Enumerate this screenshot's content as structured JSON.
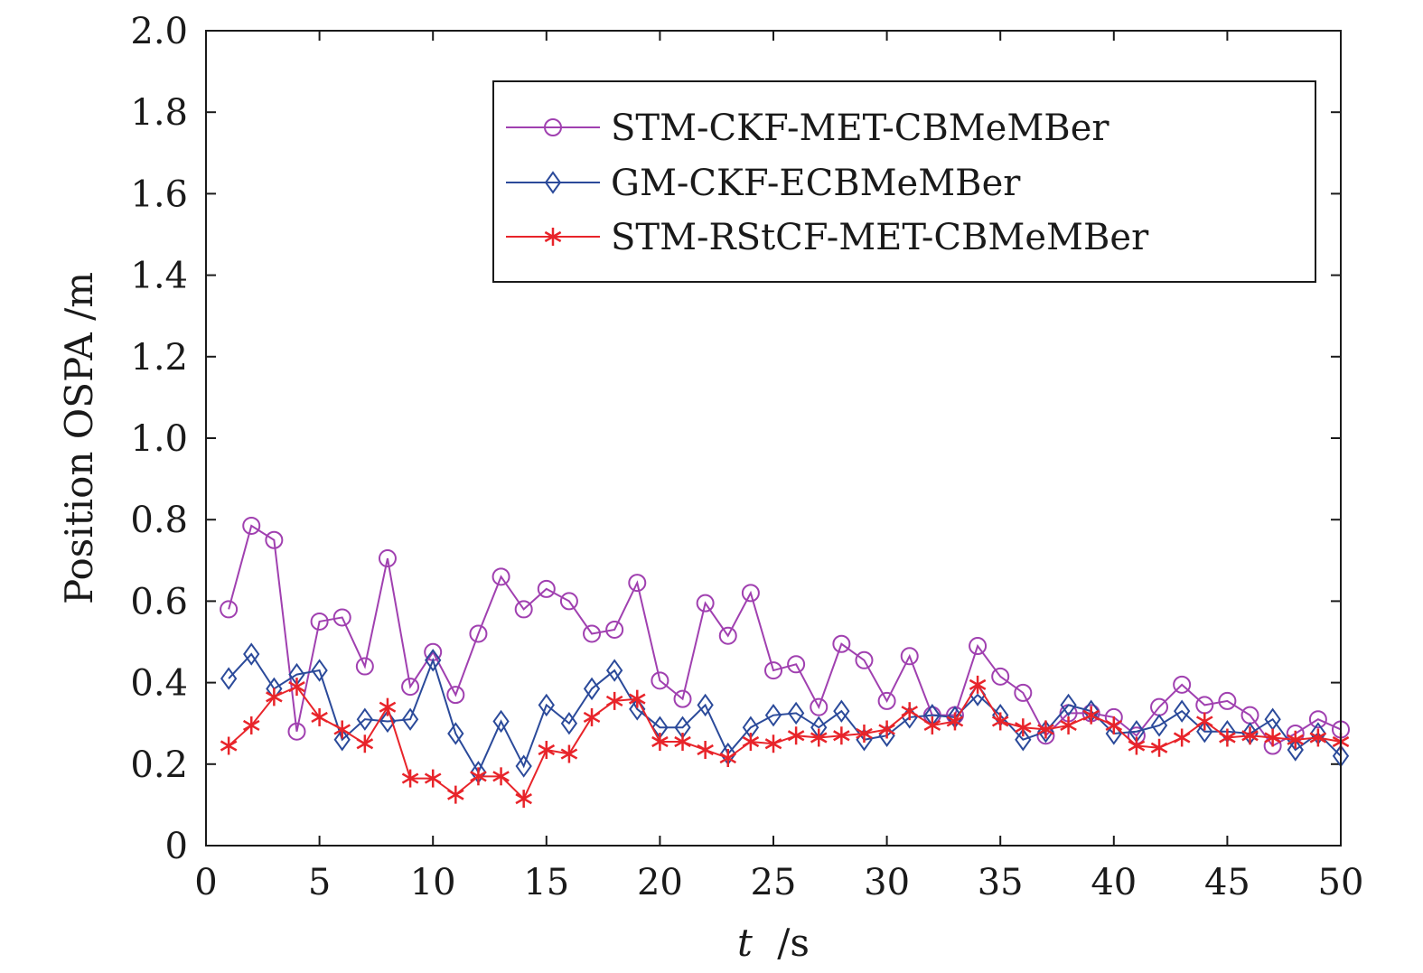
{
  "chart_data": {
    "type": "line",
    "xlabel_var": "t",
    "xlabel_unit": "/s",
    "ylabel": "Position OSPA /m",
    "xlim": [
      0,
      50
    ],
    "ylim": [
      0,
      2.0
    ],
    "x_ticks": [
      "0",
      "5",
      "10",
      "15",
      "20",
      "25",
      "30",
      "35",
      "40",
      "45",
      "50"
    ],
    "y_ticks": [
      "0",
      "0.2",
      "0.4",
      "0.6",
      "0.8",
      "1.0",
      "1.2",
      "1.4",
      "1.6",
      "1.8",
      "2.0"
    ],
    "grid": false,
    "legend_position": "top-right",
    "x": [
      1,
      2,
      3,
      4,
      5,
      6,
      7,
      8,
      9,
      10,
      11,
      12,
      13,
      14,
      15,
      16,
      17,
      18,
      19,
      20,
      21,
      22,
      23,
      24,
      25,
      26,
      27,
      28,
      29,
      30,
      31,
      32,
      33,
      34,
      35,
      36,
      37,
      38,
      39,
      40,
      41,
      42,
      43,
      44,
      45,
      46,
      47,
      48,
      49,
      50
    ],
    "series": [
      {
        "name": "STM-CKF-MET-CBMeMBer",
        "color": "#a040b0",
        "marker": "circle",
        "values": [
          0.58,
          0.785,
          0.75,
          0.28,
          0.55,
          0.56,
          0.44,
          0.705,
          0.39,
          0.475,
          0.37,
          0.52,
          0.66,
          0.58,
          0.63,
          0.6,
          0.52,
          0.53,
          0.645,
          0.405,
          0.36,
          0.595,
          0.515,
          0.62,
          0.43,
          0.445,
          0.34,
          0.495,
          0.455,
          0.355,
          0.465,
          0.32,
          0.32,
          0.49,
          0.415,
          0.375,
          0.27,
          0.325,
          0.325,
          0.315,
          0.27,
          0.34,
          0.395,
          0.345,
          0.355,
          0.32,
          0.245,
          0.275,
          0.31,
          0.285
        ]
      },
      {
        "name": "GM-CKF-ECBMeMBer",
        "color": "#2b4a9a",
        "marker": "diamond",
        "values": [
          0.41,
          0.47,
          0.385,
          0.42,
          0.43,
          0.26,
          0.31,
          0.305,
          0.31,
          0.455,
          0.275,
          0.18,
          0.305,
          0.195,
          0.345,
          0.3,
          0.385,
          0.43,
          0.335,
          0.29,
          0.29,
          0.345,
          0.225,
          0.29,
          0.32,
          0.325,
          0.29,
          0.33,
          0.26,
          0.27,
          0.315,
          0.32,
          0.315,
          0.37,
          0.32,
          0.26,
          0.28,
          0.345,
          0.33,
          0.275,
          0.28,
          0.295,
          0.33,
          0.28,
          0.28,
          0.275,
          0.31,
          0.235,
          0.275,
          0.22
        ]
      },
      {
        "name": "STM-RStCF-MET-CBMeMBer",
        "color": "#e8242a",
        "marker": "asterisk",
        "values": [
          0.245,
          0.295,
          0.365,
          0.39,
          0.315,
          0.285,
          0.25,
          0.34,
          0.165,
          0.165,
          0.125,
          0.17,
          0.17,
          0.115,
          0.235,
          0.225,
          0.315,
          0.355,
          0.36,
          0.255,
          0.255,
          0.235,
          0.215,
          0.255,
          0.25,
          0.27,
          0.265,
          0.27,
          0.275,
          0.285,
          0.33,
          0.295,
          0.305,
          0.395,
          0.305,
          0.29,
          0.285,
          0.295,
          0.32,
          0.295,
          0.245,
          0.24,
          0.265,
          0.305,
          0.265,
          0.27,
          0.265,
          0.26,
          0.265,
          0.255
        ]
      }
    ]
  }
}
